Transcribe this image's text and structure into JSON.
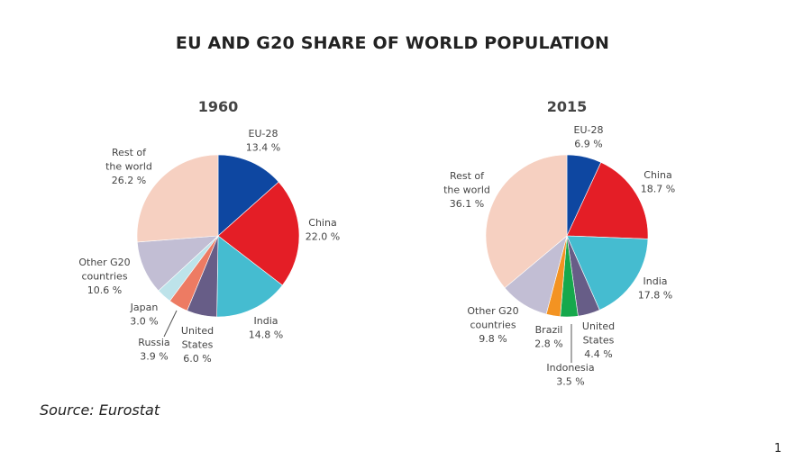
{
  "title": "EU AND G20 SHARE OF WORLD POPULATION",
  "source": "Source: Eurostat",
  "page_number": "1",
  "chart_data": [
    {
      "type": "pie",
      "title": "1960",
      "unit": "%",
      "slices": [
        {
          "label": "EU-28",
          "value": 13.4,
          "color": "#0e47a1",
          "text": [
            "EU-28",
            "13.4 %"
          ]
        },
        {
          "label": "China",
          "value": 22.0,
          "color": "#e41e26",
          "text": [
            "China",
            "22.0 %"
          ]
        },
        {
          "label": "India",
          "value": 14.8,
          "color": "#45bcd0",
          "text": [
            "India",
            "14.8 %"
          ]
        },
        {
          "label": "United States",
          "value": 6.0,
          "color": "#675d87",
          "text": [
            "United",
            "States",
            "6.0 %"
          ]
        },
        {
          "label": "Russia",
          "value": 3.9,
          "color": "#ed7b63",
          "text": [
            "Russia",
            "3.9 %"
          ]
        },
        {
          "label": "Japan",
          "value": 3.0,
          "color": "#bde3ea",
          "text": [
            "Japan",
            "3.0 %"
          ]
        },
        {
          "label": "Other G20 countries",
          "value": 10.6,
          "color": "#c2bed4",
          "text": [
            "Other G20",
            "countries",
            "10.6 %"
          ]
        },
        {
          "label": "Rest of the world",
          "value": 26.2,
          "color": "#f6d0c1",
          "text": [
            "Rest of",
            "the world",
            "26.2 %"
          ]
        }
      ]
    },
    {
      "type": "pie",
      "title": "2015",
      "unit": "%",
      "slices": [
        {
          "label": "EU-28",
          "value": 6.9,
          "color": "#0e47a1",
          "text": [
            "EU-28",
            "6.9 %"
          ]
        },
        {
          "label": "China",
          "value": 18.7,
          "color": "#e41e26",
          "text": [
            "China",
            "18.7 %"
          ]
        },
        {
          "label": "India",
          "value": 17.8,
          "color": "#45bcd0",
          "text": [
            "India",
            "17.8 %"
          ]
        },
        {
          "label": "United States",
          "value": 4.4,
          "color": "#675d87",
          "text": [
            "United",
            "States",
            "4.4 %"
          ]
        },
        {
          "label": "Indonesia",
          "value": 3.5,
          "color": "#16a84c",
          "text": [
            "Indonesia",
            "3.5 %"
          ]
        },
        {
          "label": "Brazil",
          "value": 2.8,
          "color": "#f39322",
          "text": [
            "Brazil",
            "2.8 %"
          ]
        },
        {
          "label": "Other G20 countries",
          "value": 9.8,
          "color": "#c2bed4",
          "text": [
            "Other G20",
            "countries",
            "9.8 %"
          ]
        },
        {
          "label": "Rest of the world",
          "value": 36.1,
          "color": "#f6d0c1",
          "text": [
            "Rest of",
            "the world",
            "36.1 %"
          ]
        }
      ]
    }
  ]
}
